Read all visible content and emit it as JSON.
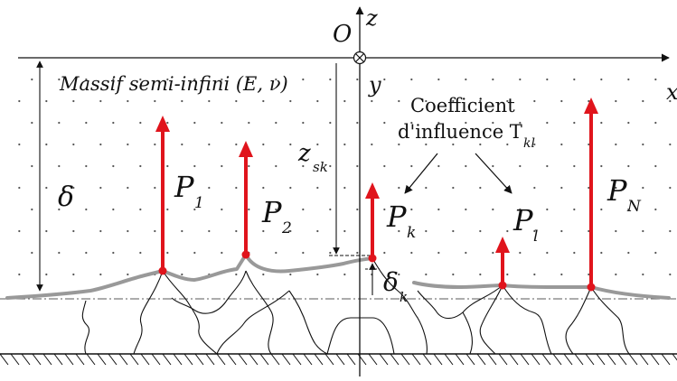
{
  "labels": {
    "origin": "O",
    "axis_z": "z",
    "axis_y": "y",
    "axis_x": "x",
    "massif": "Massif semi-infini (E, ν)",
    "coefficient_line1": "Coefficient",
    "coefficient_line2": "d'influence T",
    "coefficient_sub": "kl",
    "delta": "δ",
    "z_sk": "z",
    "z_sk_sub": "sk",
    "delta_k": "δ",
    "delta_k_sub": "k"
  },
  "forces": [
    {
      "id": "p1",
      "symbol": "P",
      "sub": "1"
    },
    {
      "id": "p2",
      "symbol": "P",
      "sub": "2"
    },
    {
      "id": "pk",
      "symbol": "P",
      "sub": "k"
    },
    {
      "id": "pl",
      "symbol": "P",
      "sub": "l"
    },
    {
      "id": "pn",
      "symbol": "P",
      "sub": "N"
    }
  ],
  "colors": {
    "force": "#e0141c",
    "surface": "#999999",
    "line": "#111111",
    "dots": "#555555"
  }
}
